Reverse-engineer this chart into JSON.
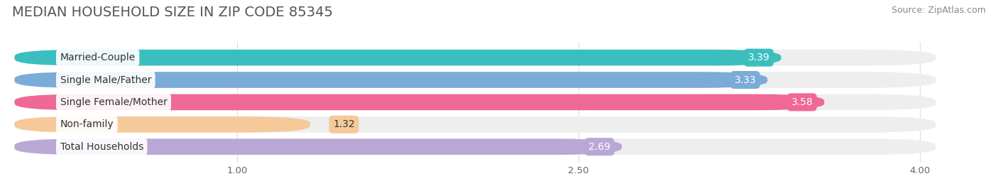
{
  "title": "MEDIAN HOUSEHOLD SIZE IN ZIP CODE 85345",
  "source": "Source: ZipAtlas.com",
  "categories": [
    "Married-Couple",
    "Single Male/Father",
    "Single Female/Mother",
    "Non-family",
    "Total Households"
  ],
  "values": [
    3.39,
    3.33,
    3.58,
    1.32,
    2.69
  ],
  "bar_colors": [
    "#3bbfbe",
    "#7bacd8",
    "#f06895",
    "#f5c99a",
    "#b9a8d6"
  ],
  "value_label_colors": [
    "#3bbfbe",
    "#7bacd8",
    "#f06895",
    "#f5c99a",
    "#b9a8d6"
  ],
  "xlim_data_min": 0.0,
  "xlim_data_max": 4.0,
  "x_axis_start": 1.0,
  "xticks": [
    1.0,
    2.5,
    4.0
  ],
  "xtick_labels": [
    "1.00",
    "2.50",
    "4.00"
  ],
  "background_color": "#ffffff",
  "bar_bg_color": "#eeeeee",
  "title_fontsize": 14,
  "source_fontsize": 9,
  "bar_label_fontsize": 10,
  "cat_label_fontsize": 10
}
